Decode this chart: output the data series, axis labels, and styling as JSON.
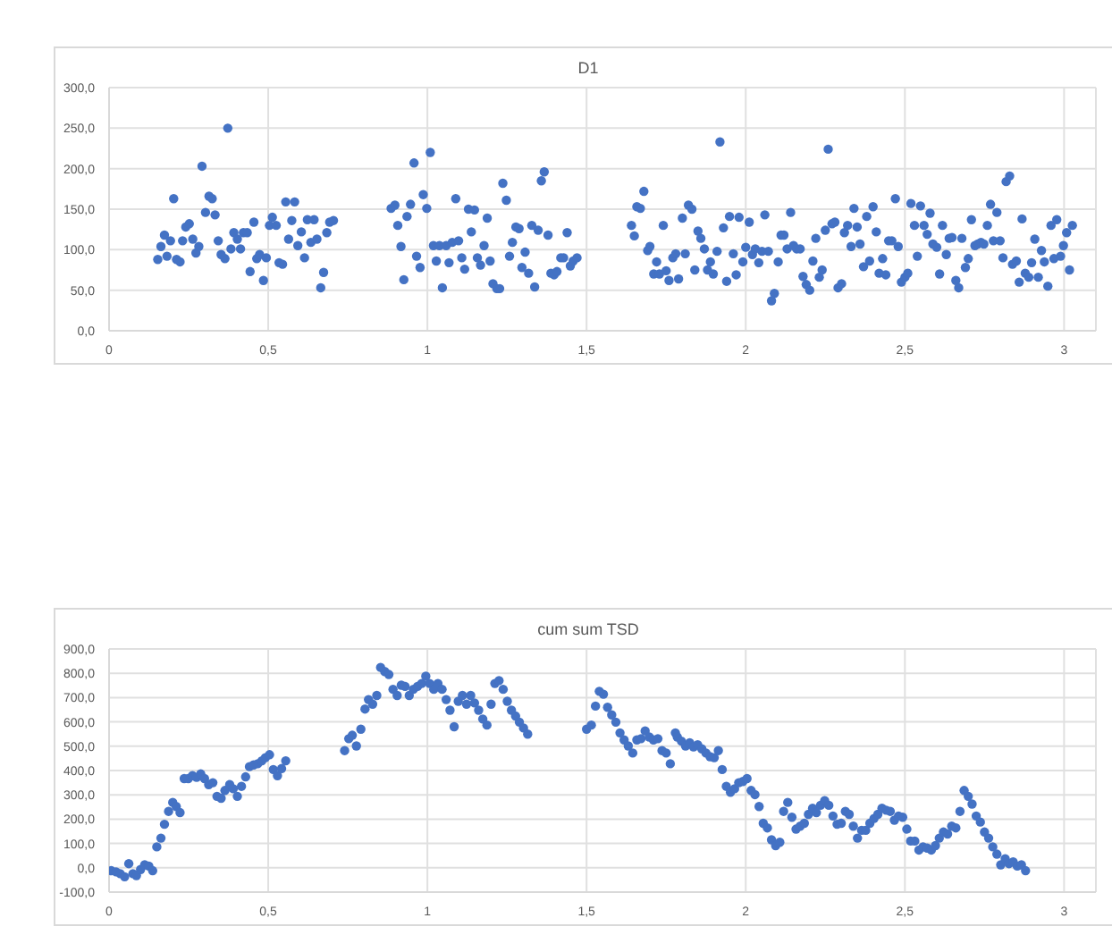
{
  "chart_data": [
    {
      "type": "scatter",
      "title": "D1",
      "color": "#4472c4",
      "marker": "circle",
      "grid": true,
      "xlim": [
        0,
        3.1
      ],
      "xticks": [
        0,
        {
          "value": 0.5,
          "label": "0,5"
        },
        1,
        {
          "value": 1.5,
          "label": "1,5"
        },
        2,
        {
          "value": 2.5,
          "label": "2,5"
        },
        3
      ],
      "ylim": [
        0,
        300
      ],
      "yticks": [
        {
          "value": 0,
          "label": "0,0"
        },
        {
          "value": 50,
          "label": "50,0"
        },
        {
          "value": 100,
          "label": "100,0"
        },
        {
          "value": 150,
          "label": "150,0"
        },
        {
          "value": 200,
          "label": "200,0"
        },
        {
          "value": 250,
          "label": "250,0"
        },
        {
          "value": 300,
          "label": "300,0"
        }
      ],
      "x": [
        0.153,
        0.163,
        0.174,
        0.182,
        0.193,
        0.203,
        0.212,
        0.223,
        0.231,
        0.241,
        0.252,
        0.263,
        0.273,
        0.282,
        0.292,
        0.303,
        0.314,
        0.324,
        0.333,
        0.343,
        0.352,
        0.364,
        0.373,
        0.383,
        0.392,
        0.403,
        0.413,
        0.422,
        0.434,
        0.443,
        0.455,
        0.464,
        0.473,
        0.485,
        0.494,
        0.504,
        0.513,
        0.525,
        0.534,
        0.545,
        0.555,
        0.564,
        0.574,
        0.583,
        0.593,
        0.604,
        0.614,
        0.623,
        0.634,
        0.644,
        0.653,
        0.665,
        0.674,
        0.684,
        0.693,
        0.705,
        0.886,
        0.898,
        0.907,
        0.917,
        0.926,
        0.936,
        0.947,
        0.958,
        0.966,
        0.977,
        0.987,
        0.998,
        1.009,
        1.019,
        1.028,
        1.038,
        1.047,
        1.059,
        1.068,
        1.078,
        1.089,
        1.098,
        1.108,
        1.117,
        1.129,
        1.138,
        1.148,
        1.157,
        1.167,
        1.178,
        1.188,
        1.197,
        1.206,
        1.218,
        1.227,
        1.237,
        1.248,
        1.258,
        1.267,
        1.278,
        1.288,
        1.297,
        1.307,
        1.318,
        1.328,
        1.337,
        1.348,
        1.358,
        1.367,
        1.379,
        1.388,
        1.398,
        1.407,
        1.419,
        1.428,
        1.439,
        1.449,
        1.458,
        1.47,
        1.641,
        1.65,
        1.658,
        1.669,
        1.68,
        1.692,
        1.699,
        1.711,
        1.72,
        1.729,
        1.741,
        1.75,
        1.759,
        1.771,
        1.78,
        1.789,
        1.801,
        1.81,
        1.82,
        1.831,
        1.84,
        1.85,
        1.859,
        1.87,
        1.88,
        1.889,
        1.898,
        1.91,
        1.919,
        1.93,
        1.94,
        1.949,
        1.961,
        1.97,
        1.979,
        1.991,
        2.0,
        2.011,
        2.021,
        2.03,
        2.041,
        2.051,
        2.06,
        2.071,
        2.081,
        2.09,
        2.102,
        2.111,
        2.12,
        2.13,
        2.141,
        2.15,
        2.16,
        2.171,
        2.18,
        2.19,
        2.201,
        2.211,
        2.22,
        2.231,
        2.24,
        2.25,
        2.259,
        2.271,
        2.28,
        2.29,
        2.301,
        2.31,
        2.32,
        2.331,
        2.34,
        2.35,
        2.359,
        2.37,
        2.38,
        2.389,
        2.4,
        2.41,
        2.419,
        2.43,
        2.44,
        2.449,
        2.459,
        2.47,
        2.479,
        2.489,
        2.5,
        2.509,
        2.519,
        2.53,
        2.539,
        2.549,
        2.56,
        2.57,
        2.579,
        2.588,
        2.6,
        2.609,
        2.618,
        2.63,
        2.639,
        2.648,
        2.66,
        2.669,
        2.679,
        2.69,
        2.699,
        2.709,
        2.72,
        2.729,
        2.739,
        2.748,
        2.759,
        2.769,
        2.778,
        2.789,
        2.799,
        2.808,
        2.818,
        2.829,
        2.838,
        2.85,
        2.859,
        2.868,
        2.878,
        2.889,
        2.898,
        2.908,
        2.919,
        2.929,
        2.938,
        2.949,
        2.959,
        2.968,
        2.977,
        2.989,
        2.998,
        3.008,
        3.017,
        3.026
      ],
      "values": [
        88,
        104,
        118,
        92,
        111,
        163,
        88,
        85,
        111,
        128,
        132,
        113,
        96,
        104,
        203,
        146,
        166,
        163,
        143,
        111,
        94,
        89,
        250,
        101,
        121,
        113,
        101,
        121,
        121,
        73,
        134,
        89,
        94,
        62,
        90,
        130,
        140,
        130,
        84,
        82,
        159,
        113,
        136,
        159,
        105,
        122,
        90,
        137,
        109,
        137,
        113,
        53,
        72,
        121,
        134,
        136,
        151,
        155,
        130,
        104,
        63,
        141,
        156,
        207,
        92,
        78,
        168,
        151,
        220,
        105,
        86,
        105,
        53,
        105,
        84,
        109,
        163,
        111,
        90,
        76,
        150,
        122,
        149,
        90,
        81,
        105,
        139,
        86,
        58,
        52,
        52,
        182,
        161,
        92,
        109,
        128,
        126,
        78,
        97,
        71,
        130,
        54,
        124,
        185,
        196,
        118,
        71,
        69,
        73,
        90,
        90,
        121,
        80,
        86,
        90,
        130,
        117,
        153,
        151,
        172,
        99,
        104,
        70,
        85,
        70,
        130,
        74,
        62,
        90,
        95,
        64,
        139,
        95,
        155,
        150,
        75,
        123,
        114,
        101,
        75,
        85,
        70,
        98,
        233,
        127,
        61,
        141,
        95,
        69,
        140,
        85,
        103,
        134,
        94,
        101,
        84,
        98,
        143,
        98,
        37,
        46,
        85,
        118,
        118,
        101,
        146,
        105,
        101,
        101,
        67,
        57,
        50,
        86,
        114,
        66,
        75,
        124,
        224,
        132,
        134,
        53,
        58,
        121,
        130,
        104,
        151,
        128,
        107,
        79,
        141,
        86,
        153,
        122,
        71,
        89,
        69,
        111,
        111,
        163,
        104,
        60,
        66,
        71,
        157,
        130,
        92,
        154,
        130,
        119,
        145,
        107,
        103,
        70,
        130,
        94,
        114,
        115,
        62,
        53,
        114,
        78,
        89,
        137,
        105,
        107,
        109,
        107,
        130,
        156,
        111,
        146,
        111,
        90,
        184,
        191,
        82,
        86,
        60,
        138,
        71,
        66,
        84,
        113,
        66,
        99,
        85,
        55,
        130,
        89,
        137,
        92,
        105,
        121,
        75,
        130
      ]
    },
    {
      "type": "scatter",
      "title": "cum sum TSD",
      "color": "#4472c4",
      "marker": "circle",
      "grid": true,
      "xlim": [
        0,
        3.1
      ],
      "xticks": [
        0,
        {
          "value": 0.5,
          "label": "0,5"
        },
        1,
        {
          "value": 1.5,
          "label": "1,5"
        },
        2,
        {
          "value": 2.5,
          "label": "2,5"
        },
        3
      ],
      "ylim": [
        -100,
        900
      ],
      "yticks": [
        {
          "value": -100,
          "label": "-100,0"
        },
        {
          "value": 0,
          "label": "0,0"
        },
        {
          "value": 100,
          "label": "100,0"
        },
        {
          "value": 200,
          "label": "200,0"
        },
        {
          "value": 300,
          "label": "300,0"
        },
        {
          "value": 400,
          "label": "400,0"
        },
        {
          "value": 500,
          "label": "500,0"
        },
        {
          "value": 600,
          "label": "600,0"
        },
        {
          "value": 700,
          "label": "700,0"
        },
        {
          "value": 800,
          "label": "800,0"
        },
        {
          "value": 900,
          "label": "900,0"
        }
      ],
      "x": [
        0.007,
        0.022,
        0.035,
        0.049,
        0.062,
        0.075,
        0.086,
        0.099,
        0.112,
        0.125,
        0.137,
        0.15,
        0.163,
        0.174,
        0.187,
        0.2,
        0.211,
        0.223,
        0.236,
        0.249,
        0.262,
        0.275,
        0.288,
        0.3,
        0.313,
        0.326,
        0.339,
        0.352,
        0.364,
        0.379,
        0.39,
        0.403,
        0.416,
        0.429,
        0.441,
        0.454,
        0.467,
        0.48,
        0.491,
        0.504,
        0.516,
        0.529,
        0.542,
        0.555,
        0.74,
        0.753,
        0.764,
        0.777,
        0.791,
        0.804,
        0.815,
        0.828,
        0.841,
        0.853,
        0.866,
        0.879,
        0.892,
        0.905,
        0.918,
        0.93,
        0.943,
        0.956,
        0.969,
        0.982,
        0.995,
        1.007,
        1.02,
        1.033,
        1.046,
        1.059,
        1.071,
        1.084,
        1.097,
        1.11,
        1.123,
        1.136,
        1.148,
        1.161,
        1.174,
        1.187,
        1.2,
        1.212,
        1.225,
        1.238,
        1.251,
        1.264,
        1.277,
        1.289,
        1.302,
        1.315,
        1.5,
        1.515,
        1.528,
        1.54,
        1.553,
        1.566,
        1.579,
        1.592,
        1.605,
        1.618,
        1.631,
        1.645,
        1.658,
        1.671,
        1.684,
        1.697,
        1.71,
        1.724,
        1.737,
        1.75,
        1.763,
        1.779,
        1.785,
        1.798,
        1.811,
        1.824,
        1.836,
        1.849,
        1.862,
        1.875,
        1.888,
        1.901,
        1.914,
        1.926,
        1.939,
        1.952,
        1.965,
        1.978,
        1.991,
        2.004,
        2.017,
        2.029,
        2.042,
        2.055,
        2.068,
        2.081,
        2.094,
        2.107,
        2.119,
        2.132,
        2.145,
        2.158,
        2.171,
        2.184,
        2.197,
        2.21,
        2.222,
        2.235,
        2.248,
        2.261,
        2.274,
        2.287,
        2.3,
        2.313,
        2.325,
        2.338,
        2.351,
        2.364,
        2.377,
        2.39,
        2.403,
        2.415,
        2.428,
        2.441,
        2.454,
        2.467,
        2.48,
        2.493,
        2.506,
        2.518,
        2.531,
        2.544,
        2.557,
        2.57,
        2.583,
        2.596,
        2.608,
        2.621,
        2.634,
        2.647,
        2.66,
        2.673,
        2.686,
        2.699,
        2.711,
        2.724,
        2.737,
        2.75,
        2.763,
        2.776,
        2.789,
        2.801,
        2.815,
        2.827,
        2.84,
        2.853,
        2.866,
        2.879
      ],
      "values": [
        -12,
        -17,
        -24,
        -37,
        17,
        -24,
        -32,
        -7,
        12,
        7,
        -12,
        86,
        122,
        179,
        232,
        269,
        252,
        227,
        367,
        367,
        379,
        372,
        386,
        367,
        342,
        350,
        294,
        286,
        318,
        342,
        325,
        294,
        335,
        374,
        416,
        423,
        428,
        440,
        453,
        465,
        404,
        379,
        408,
        440,
        482,
        531,
        545,
        501,
        570,
        653,
        692,
        673,
        709,
        824,
        807,
        795,
        734,
        709,
        751,
        746,
        709,
        734,
        746,
        758,
        788,
        758,
        734,
        758,
        734,
        692,
        648,
        580,
        685,
        709,
        673,
        709,
        678,
        648,
        612,
        587,
        673,
        758,
        770,
        734,
        685,
        648,
        624,
        599,
        575,
        550,
        570,
        587,
        665,
        726,
        714,
        660,
        629,
        599,
        555,
        526,
        501,
        472,
        526,
        531,
        563,
        538,
        526,
        531,
        482,
        472,
        428,
        555,
        538,
        521,
        501,
        514,
        497,
        506,
        489,
        472,
        457,
        453,
        482,
        404,
        335,
        311,
        325,
        350,
        355,
        367,
        318,
        301,
        252,
        183,
        164,
        115,
        91,
        105,
        232,
        269,
        208,
        159,
        171,
        183,
        220,
        245,
        227,
        257,
        276,
        257,
        213,
        179,
        183,
        232,
        220,
        171,
        122,
        154,
        154,
        183,
        203,
        220,
        245,
        237,
        232,
        196,
        213,
        208,
        159,
        110,
        110,
        73,
        86,
        81,
        73,
        91,
        122,
        147,
        139,
        171,
        164,
        232,
        318,
        294,
        262,
        213,
        188,
        147,
        122,
        86,
        56,
        12,
        37,
        17,
        24,
        7,
        12,
        -12
      ]
    }
  ]
}
